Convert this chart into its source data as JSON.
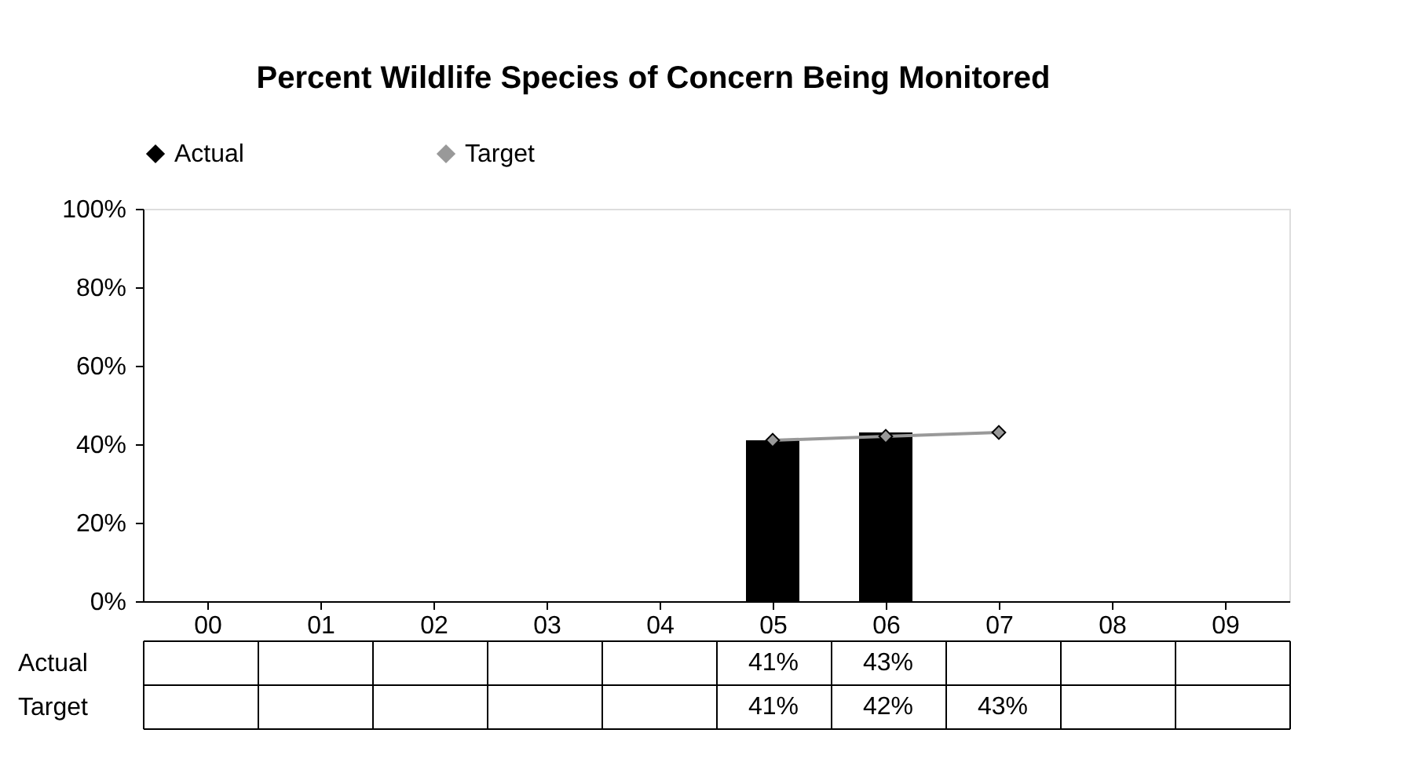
{
  "chart_data": {
    "type": "bar",
    "title": "Percent Wildlife Species of Concern Being Monitored",
    "categories": [
      "00",
      "01",
      "02",
      "03",
      "04",
      "05",
      "06",
      "07",
      "08",
      "09"
    ],
    "series": [
      {
        "name": "Actual",
        "type": "bar",
        "color": "#000000",
        "values": [
          null,
          null,
          null,
          null,
          null,
          41,
          43,
          null,
          null,
          null
        ],
        "value_labels": [
          null,
          null,
          null,
          null,
          null,
          "41%",
          "43%",
          null,
          null,
          null
        ]
      },
      {
        "name": "Target",
        "type": "line",
        "color": "#999999",
        "values": [
          null,
          null,
          null,
          null,
          null,
          41,
          42,
          43,
          null,
          null
        ],
        "value_labels": [
          null,
          null,
          null,
          null,
          null,
          "41%",
          "42%",
          "43%",
          null,
          null
        ]
      }
    ],
    "ylim": [
      0,
      100
    ],
    "yticks": [
      {
        "value": 0,
        "label": "0%"
      },
      {
        "value": 20,
        "label": "20%"
      },
      {
        "value": 40,
        "label": "40%"
      },
      {
        "value": 60,
        "label": "60%"
      },
      {
        "value": 80,
        "label": "80%"
      },
      {
        "value": 100,
        "label": "100%"
      }
    ],
    "grid": false,
    "legend": "top",
    "marker": "diamond",
    "line_style": "solid"
  }
}
